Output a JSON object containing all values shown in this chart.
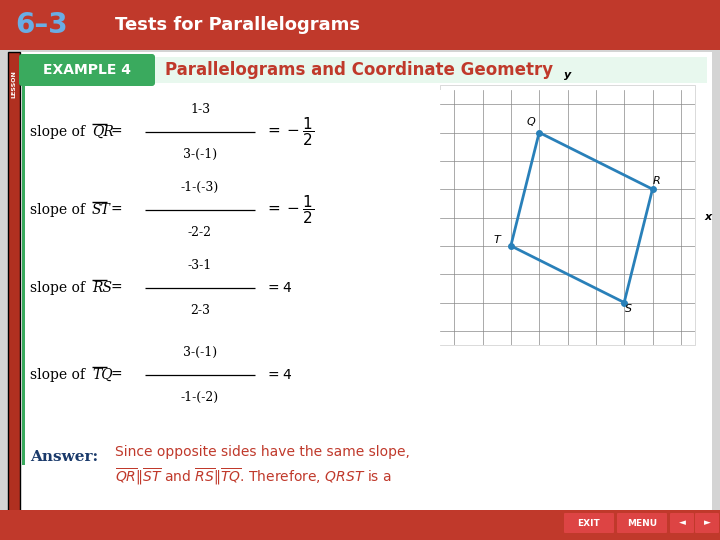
{
  "title_bar_color": "#c0392b",
  "title_bar_text": "Tests for Parallelograms",
  "title_lesson": "6–3",
  "title_lesson_color": "#6aade4",
  "example_banner_text": "EXAMPLE 4",
  "example_title": "Parallelograms and Coordinate Geometry",
  "example_title_color": "#c0392b",
  "bg_color": "#ffffff",
  "left_bar_color": "#27ae60",
  "slope_labels": [
    "QR",
    "ST",
    "RS",
    "TQ"
  ],
  "slope_nums": [
    "1-3",
    "-1-(-3)",
    "-3-1",
    "3-(-1)"
  ],
  "slope_dens": [
    "3-(-1)",
    "-2-2",
    "2-3",
    "-1-(-2)"
  ],
  "slope_results": [
    "= -\\frac{1}{2}",
    "= -\\frac{1}{2}",
    "= 4",
    "= 4"
  ],
  "answer_label_color": "#1a3a6b",
  "answer_text_color": "#c0392b",
  "answer_label": "Answer:",
  "graph_points": {
    "Q": [
      -1,
      3
    ],
    "R": [
      3,
      1
    ],
    "S": [
      2,
      -3
    ],
    "T": [
      -2,
      -1
    ]
  },
  "graph_order": [
    "Q",
    "R",
    "S",
    "T"
  ],
  "graph_color": "#2980b9",
  "bottom_bar_color": "#c0392b",
  "slide_bg": "#e8e8e8",
  "content_bg": "#f0f0f0"
}
